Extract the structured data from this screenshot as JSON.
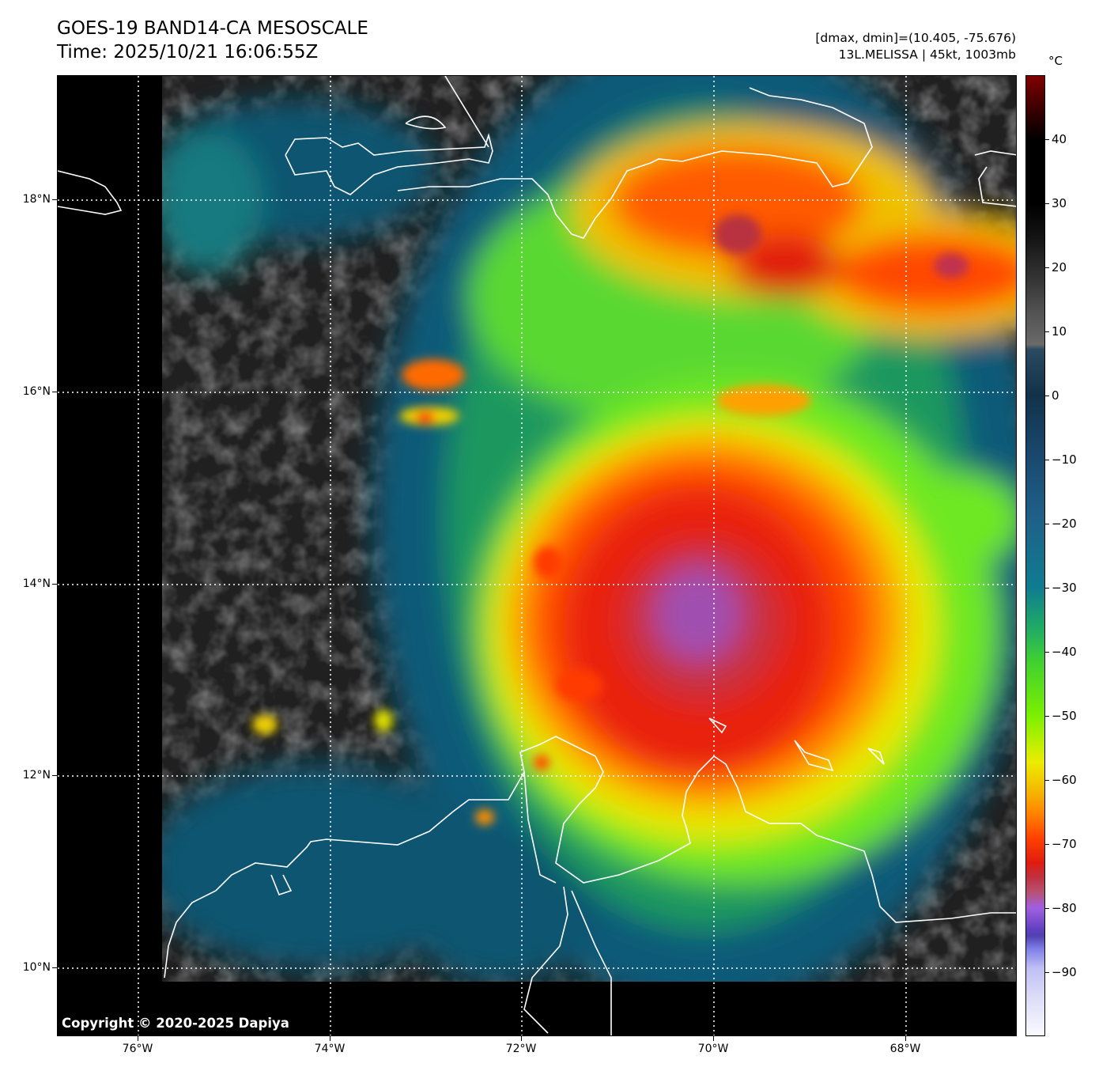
{
  "header": {
    "title": "GOES-19 BAND14-CA MESOSCALE",
    "time": "Time: 2025/10/21 16:06:55Z",
    "range_info": "[dmax, dmin]=(10.405, -75.676)",
    "storm_info": "13L.MELISSA | 45kt, 1003mb"
  },
  "map": {
    "lat_labels": [
      "18°N",
      "16°N",
      "14°N",
      "12°N",
      "10°N"
    ],
    "lon_labels": [
      "76°W",
      "74°W",
      "72°W",
      "70°W",
      "68°W"
    ],
    "copyright": "Copyright © 2020-2025 Dapiya"
  },
  "colorbar": {
    "unit": "°C",
    "ticks": [
      "40",
      "30",
      "20",
      "10",
      "0",
      "−10",
      "−20",
      "−30",
      "−40",
      "−50",
      "−60",
      "−70",
      "−80",
      "−90"
    ],
    "range": [
      -100,
      50
    ]
  }
}
